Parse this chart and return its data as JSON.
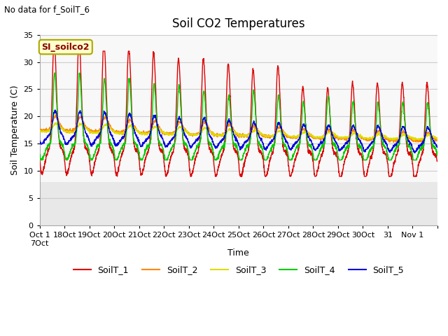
{
  "title": "Soil CO2 Temperatures",
  "ylabel": "Soil Temperature (C)",
  "xlabel": "Time",
  "no_data_text": "No data for f_SoilT_6",
  "annotation_text": "SI_soilco2",
  "ylim": [
    0,
    35
  ],
  "yticks": [
    0,
    5,
    10,
    15,
    20,
    25,
    30,
    35
  ],
  "series_colors": {
    "SoilT_1": "#dd0000",
    "SoilT_2": "#ff8800",
    "SoilT_3": "#dddd00",
    "SoilT_4": "#00cc00",
    "SoilT_5": "#0000dd"
  },
  "plot_bg_color": "#e8e8e8",
  "plot_upper_bg": "#f8f8f8",
  "grid_color": "#cccccc",
  "n_days": 16,
  "pts_per_day": 144,
  "figsize": [
    6.4,
    4.8
  ],
  "dpi": 100
}
